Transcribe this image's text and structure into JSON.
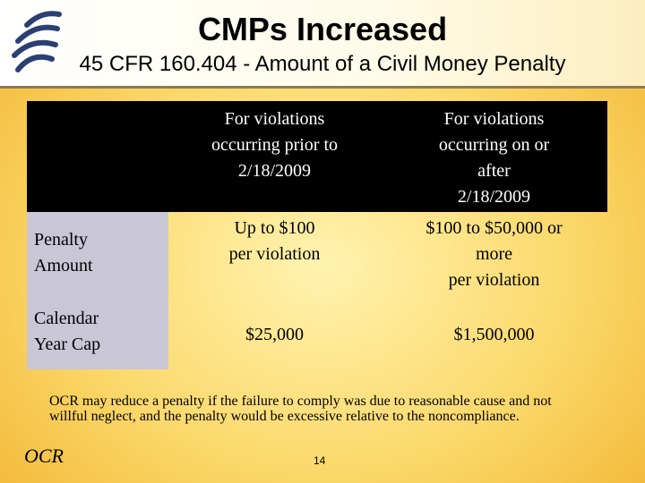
{
  "header": {
    "title": "CMPs Increased",
    "subtitle": "45 CFR 160.404 - Amount of a Civil Money Penalty"
  },
  "table": {
    "columns": [
      "For violations\noccurring prior to\n2/18/2009",
      "For violations\noccurring on or\nafter\n2/18/2009"
    ],
    "rows": [
      [
        "Penalty\nAmount",
        "Up to $100\nper violation",
        "$100 to $50,000 or\nmore\nper violation"
      ],
      [
        "Calendar\nYear Cap",
        "$25,000",
        "$1,500,000"
      ]
    ]
  },
  "note": "OCR may reduce a penalty if the failure to comply was due to reasonable cause and not willful neglect, and the penalty would be excessive relative to the noncompliance.",
  "footer": {
    "label": "OCR",
    "page": "14"
  }
}
